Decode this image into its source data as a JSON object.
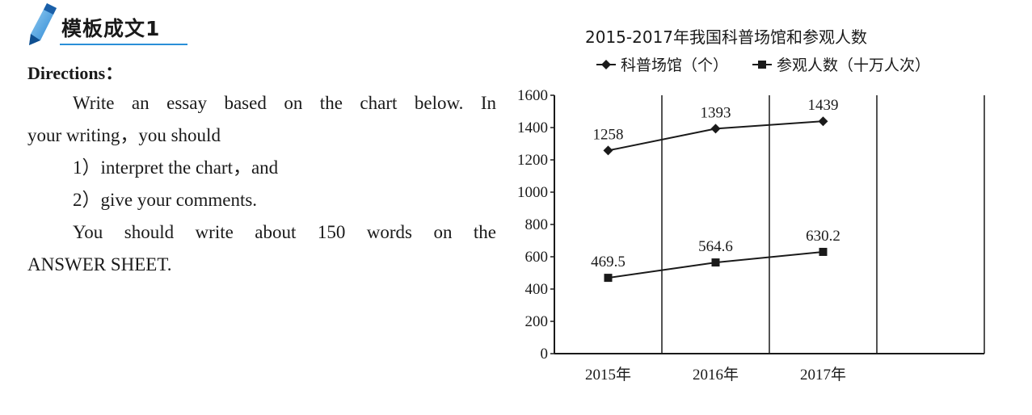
{
  "section": {
    "title": "模板成文1"
  },
  "directions": {
    "label": "Directions",
    "label_suffix": "：",
    "line1": "Write an essay based on the chart below. In",
    "line2": "your writing，you should",
    "item1": "1）interpret the chart，and",
    "item2": "2）give your comments.",
    "line5": "You should write about 150 words on the",
    "line6": "ANSWER SHEET."
  },
  "chart_data": {
    "type": "line",
    "title": "2015-2017年我国科普场馆和参观人数",
    "categories": [
      "2015年",
      "2016年",
      "2017年"
    ],
    "series": [
      {
        "name": "科普场馆（个）",
        "marker": "diamond",
        "values": [
          1258,
          1393,
          1439
        ],
        "labels": [
          "1258",
          "1393",
          "1439"
        ]
      },
      {
        "name": "参观人数（十万人次）",
        "marker": "square",
        "values": [
          469.5,
          564.6,
          630.2
        ],
        "labels": [
          "469.5",
          "564.6",
          "630.2"
        ]
      }
    ],
    "yticks": [
      "0",
      "200",
      "400",
      "600",
      "800",
      "1000",
      "1200",
      "1400",
      "1600"
    ],
    "ylim": [
      0,
      1600
    ],
    "grid": "vertical",
    "legend_position": "top",
    "line_color": "#1a1a1a"
  },
  "colors": {
    "accent": "#2a8fd8",
    "text": "#1a1a1a"
  }
}
